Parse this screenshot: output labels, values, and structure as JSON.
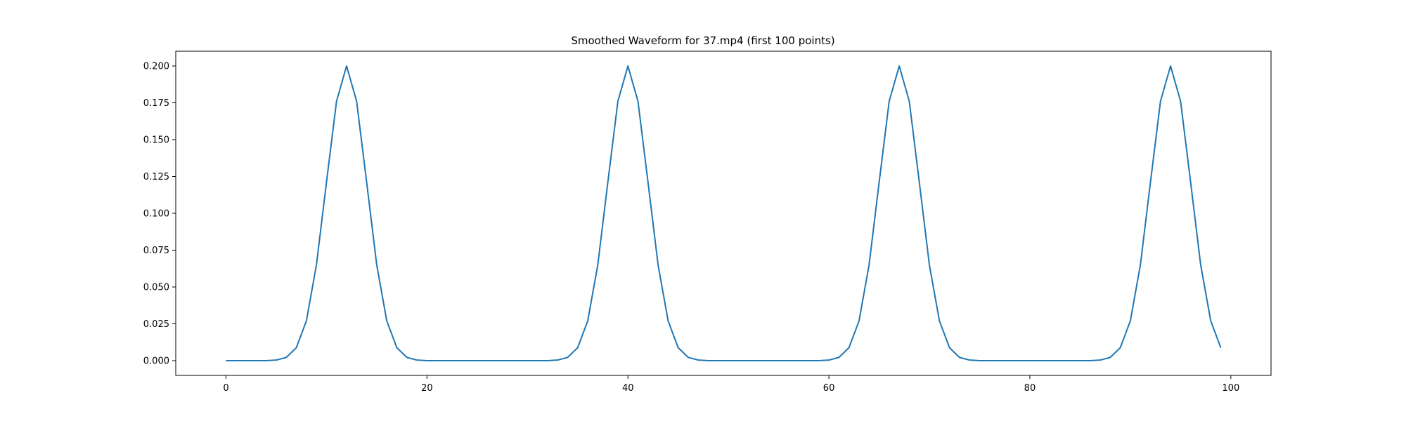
{
  "chart_data": {
    "type": "line",
    "title": "Smoothed Waveform for 37.mp4 (first 100 points)",
    "xlabel": "",
    "ylabel": "",
    "xlim": [
      -5,
      104
    ],
    "ylim": [
      -0.01,
      0.21
    ],
    "grid": false,
    "line_color": "#1f77b4",
    "x_ticks": [
      0,
      20,
      40,
      60,
      80,
      100
    ],
    "x_tick_labels": [
      "0",
      "20",
      "40",
      "60",
      "80",
      "100"
    ],
    "y_ticks": [
      0.0,
      0.025,
      0.05,
      0.075,
      0.1,
      0.125,
      0.15,
      0.175,
      0.2
    ],
    "y_tick_labels": [
      "0.000",
      "0.025",
      "0.050",
      "0.075",
      "0.100",
      "0.125",
      "0.150",
      "0.175",
      "0.200"
    ],
    "series": [
      {
        "x": [
          0,
          1,
          2,
          3,
          4,
          5,
          6,
          7,
          8,
          9,
          10,
          11,
          12,
          13,
          14,
          15,
          16,
          17,
          18,
          19,
          20,
          21,
          22,
          23,
          24,
          25,
          26,
          27,
          28,
          29,
          30,
          31,
          32,
          33,
          34,
          35,
          36,
          37,
          38,
          39,
          40,
          41,
          42,
          43,
          44,
          45,
          46,
          47,
          48,
          49,
          50,
          51,
          52,
          53,
          54,
          55,
          56,
          57,
          58,
          59,
          60,
          61,
          62,
          63,
          64,
          65,
          66,
          67,
          68,
          69,
          70,
          71,
          72,
          73,
          74,
          75,
          76,
          77,
          78,
          79,
          80,
          81,
          82,
          83,
          84,
          85,
          86,
          87,
          88,
          89,
          90,
          91,
          92,
          93,
          94,
          95,
          96,
          97,
          98,
          99
        ],
        "y": [
          0.0,
          0.0,
          0.0,
          0.0,
          0.0,
          0.0004,
          0.0022,
          0.0088,
          0.027,
          0.065,
          0.121,
          0.176,
          0.2,
          0.176,
          0.121,
          0.065,
          0.027,
          0.0088,
          0.0022,
          0.0004,
          0.0,
          0.0,
          0.0,
          0.0,
          0.0,
          0.0,
          0.0,
          0.0,
          0.0,
          0.0,
          0.0,
          0.0,
          0.0,
          0.0004,
          0.0022,
          0.0088,
          0.027,
          0.065,
          0.121,
          0.176,
          0.2,
          0.176,
          0.121,
          0.065,
          0.027,
          0.0088,
          0.0022,
          0.0004,
          0.0,
          0.0,
          0.0,
          0.0,
          0.0,
          0.0,
          0.0,
          0.0,
          0.0,
          0.0,
          0.0,
          0.0,
          0.0004,
          0.0022,
          0.0088,
          0.027,
          0.065,
          0.121,
          0.176,
          0.2,
          0.176,
          0.121,
          0.065,
          0.027,
          0.0088,
          0.0022,
          0.0004,
          0.0,
          0.0,
          0.0,
          0.0,
          0.0,
          0.0,
          0.0,
          0.0,
          0.0,
          0.0,
          0.0,
          0.0,
          0.0004,
          0.0022,
          0.0088,
          0.027,
          0.065,
          0.121,
          0.176,
          0.2,
          0.176,
          0.121,
          0.065,
          0.027,
          0.0088
        ]
      }
    ]
  }
}
